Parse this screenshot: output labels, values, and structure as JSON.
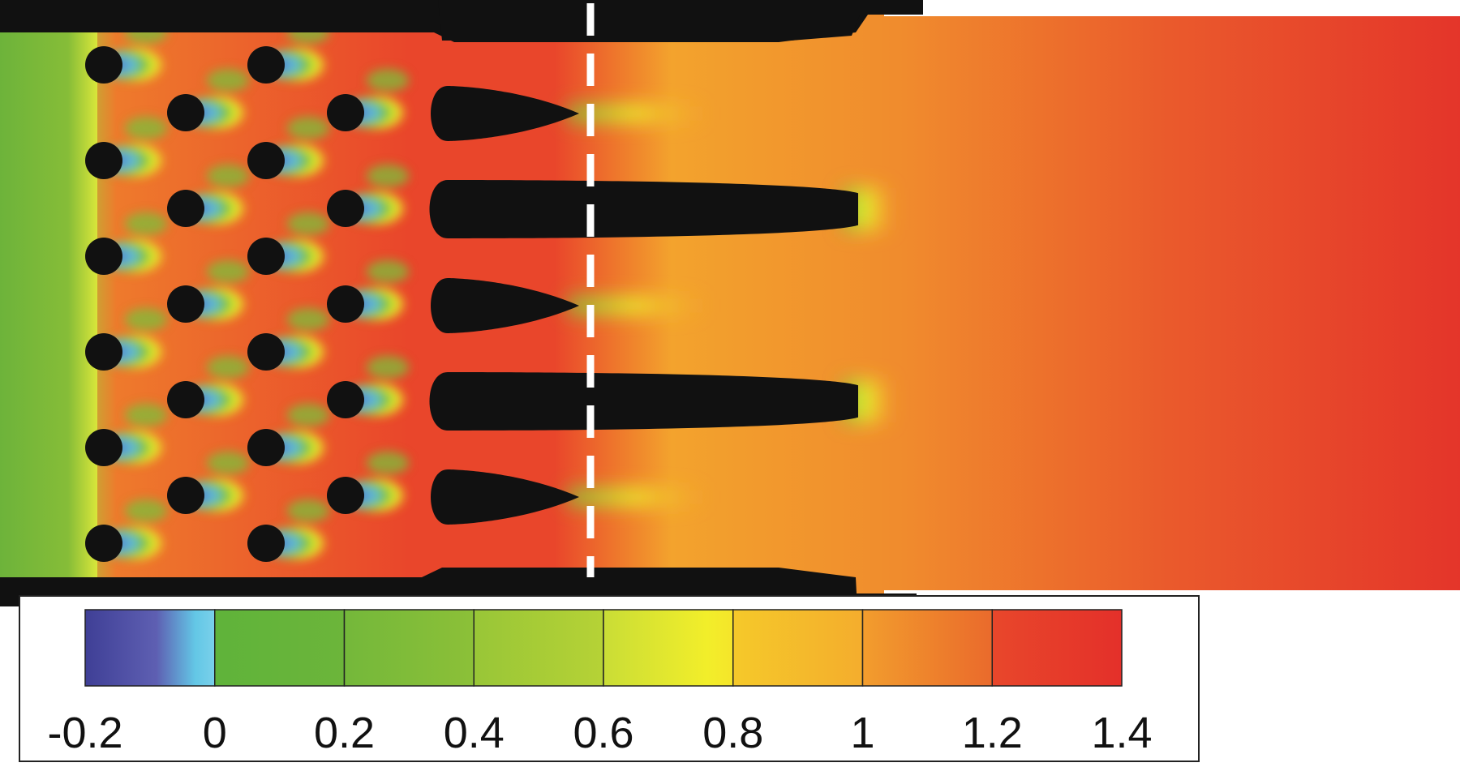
{
  "colorbar": {
    "min": -0.2,
    "max": 1.4,
    "ticks": [
      "-0.2",
      "0",
      "0.2",
      "0.4",
      "0.6",
      "0.8",
      "1",
      "1.2",
      "1.4"
    ],
    "stops": [
      {
        "value": -0.2,
        "color": "#3f3f96"
      },
      {
        "value": -0.1,
        "color": "#5e5fb2"
      },
      {
        "value": 0.0,
        "color": "#63c7e6"
      },
      {
        "value": 0.0,
        "color": "#5fb33a"
      },
      {
        "value": 0.2,
        "color": "#74b83a"
      },
      {
        "value": 0.4,
        "color": "#9cc838"
      },
      {
        "value": 0.6,
        "color": "#eef22a"
      },
      {
        "value": 0.7,
        "color": "#f5c92a"
      },
      {
        "value": 0.8,
        "color": "#f4b12d"
      },
      {
        "value": 1.0,
        "color": "#ef8a2d"
      },
      {
        "value": 1.2,
        "color": "#e6522c"
      },
      {
        "value": 1.4,
        "color": "#e4302a"
      }
    ]
  },
  "colors": {
    "solid": "#111111",
    "inlet": "#6fb43a",
    "outlet": "#e8432b",
    "high": "#e4302a",
    "mid": "#f29d2d",
    "low": "#eef22a",
    "wake": "#4a4fb0",
    "wake_light": "#62c5e8",
    "dashed_line": "#ffffff"
  }
}
